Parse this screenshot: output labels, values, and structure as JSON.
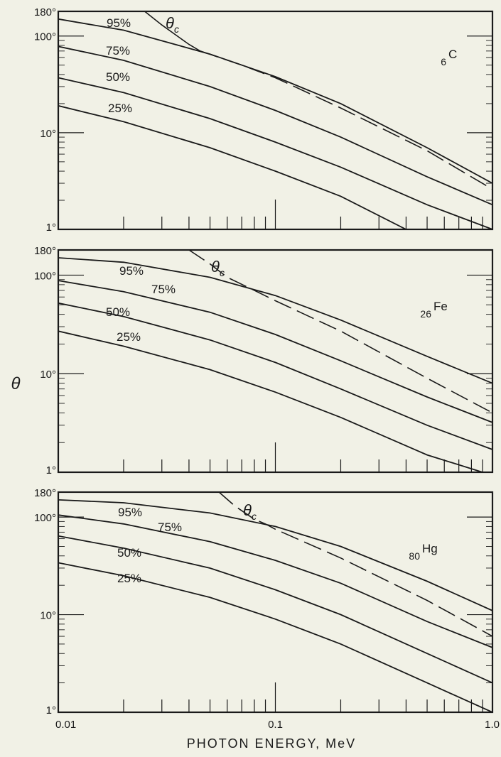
{
  "chart_data": {
    "type": "line",
    "xlabel": "PHOTON ENERGY, MeV",
    "ylabel": "θ",
    "x_scale": "log",
    "y_scale": "log",
    "xlim": [
      0.01,
      1.0
    ],
    "ylim": [
      1,
      180
    ],
    "x_tick_labels": [
      "0.01",
      "0.1",
      "1.0"
    ],
    "y_tick_labels": [
      "180°",
      "100°",
      "10°",
      "1°"
    ],
    "y_tick_values": [
      180,
      100,
      10,
      1
    ],
    "panels": [
      {
        "element_number": "6",
        "element_symbol": "C",
        "series": [
          {
            "name": "95%",
            "x": [
              0.01,
              0.02,
              0.05,
              0.1,
              0.2,
              0.5,
              1.0
            ],
            "y": [
              150,
              115,
              65,
              38,
              20,
              7,
              3
            ]
          },
          {
            "name": "75%",
            "x": [
              0.01,
              0.02,
              0.05,
              0.1,
              0.2,
              0.5,
              1.0
            ],
            "y": [
              78,
              56,
              30,
              17,
              9,
              3.5,
              1.8
            ]
          },
          {
            "name": "50%",
            "x": [
              0.01,
              0.02,
              0.05,
              0.1,
              0.2,
              0.5,
              1.0
            ],
            "y": [
              37,
              26,
              14,
              8,
              4.4,
              1.8,
              1.0
            ]
          },
          {
            "name": "25%",
            "x": [
              0.01,
              0.02,
              0.05,
              0.1,
              0.2,
              0.4
            ],
            "y": [
              19,
              13,
              7,
              4,
              2.2,
              1.0
            ]
          },
          {
            "name": "θc",
            "x": [
              0.025,
              0.03,
              0.04,
              0.045,
              0.07,
              0.1,
              0.2,
              0.5,
              1.0
            ],
            "y": [
              180,
              130,
              82,
              70,
              50,
              37,
              18,
              6.5,
              2.6
            ],
            "dashed_from_x": 0.045
          }
        ]
      },
      {
        "element_number": "26",
        "element_symbol": "Fe",
        "series": [
          {
            "name": "95%",
            "x": [
              0.01,
              0.02,
              0.05,
              0.1,
              0.2,
              0.5,
              1.0
            ],
            "y": [
              150,
              135,
              95,
              62,
              35,
              15,
              8
            ]
          },
          {
            "name": "75%",
            "x": [
              0.01,
              0.02,
              0.05,
              0.1,
              0.2,
              0.5,
              1.0
            ],
            "y": [
              88,
              68,
              42,
              25,
              13.5,
              5.8,
              3.2
            ]
          },
          {
            "name": "50%",
            "x": [
              0.01,
              0.02,
              0.05,
              0.1,
              0.2,
              0.5,
              1.0
            ],
            "y": [
              52,
              38,
              22,
              13,
              7,
              3,
              1.7
            ]
          },
          {
            "name": "25%",
            "x": [
              0.01,
              0.02,
              0.05,
              0.1,
              0.2,
              0.5,
              0.9
            ],
            "y": [
              27,
              19,
              11,
              6.5,
              3.6,
              1.5,
              1.0
            ]
          },
          {
            "name": "θc",
            "x": [
              0.04,
              0.05,
              0.06,
              0.08,
              0.1,
              0.2,
              0.5,
              1.0
            ],
            "y": [
              180,
              130,
              95,
              70,
              55,
              27,
              9,
              4
            ]
          }
        ]
      },
      {
        "element_number": "80",
        "element_symbol": "Hg",
        "series": [
          {
            "name": "95%",
            "x": [
              0.01,
              0.02,
              0.05,
              0.1,
              0.2,
              0.5,
              1.0
            ],
            "y": [
              150,
              140,
              110,
              80,
              50,
              22,
              11
            ]
          },
          {
            "name": "75%",
            "x": [
              0.01,
              0.02,
              0.05,
              0.1,
              0.2,
              0.5,
              1.0
            ],
            "y": [
              105,
              85,
              56,
              36,
              21,
              8.5,
              4.6
            ]
          },
          {
            "name": "50%",
            "x": [
              0.01,
              0.02,
              0.05,
              0.1,
              0.2,
              0.5,
              1.0
            ],
            "y": [
              64,
              48,
              30,
              18,
              10,
              4,
              2
            ]
          },
          {
            "name": "25%",
            "x": [
              0.01,
              0.02,
              0.05,
              0.1,
              0.2,
              0.5,
              1.0
            ],
            "y": [
              34,
              25,
              15,
              9,
              5,
              2,
              1.0
            ]
          },
          {
            "name": "θc",
            "x": [
              0.055,
              0.065,
              0.08,
              0.09,
              0.1,
              0.2,
              0.5,
              1.0
            ],
            "y": [
              180,
              130,
              95,
              85,
              75,
              38,
              14,
              6
            ]
          }
        ]
      }
    ]
  }
}
